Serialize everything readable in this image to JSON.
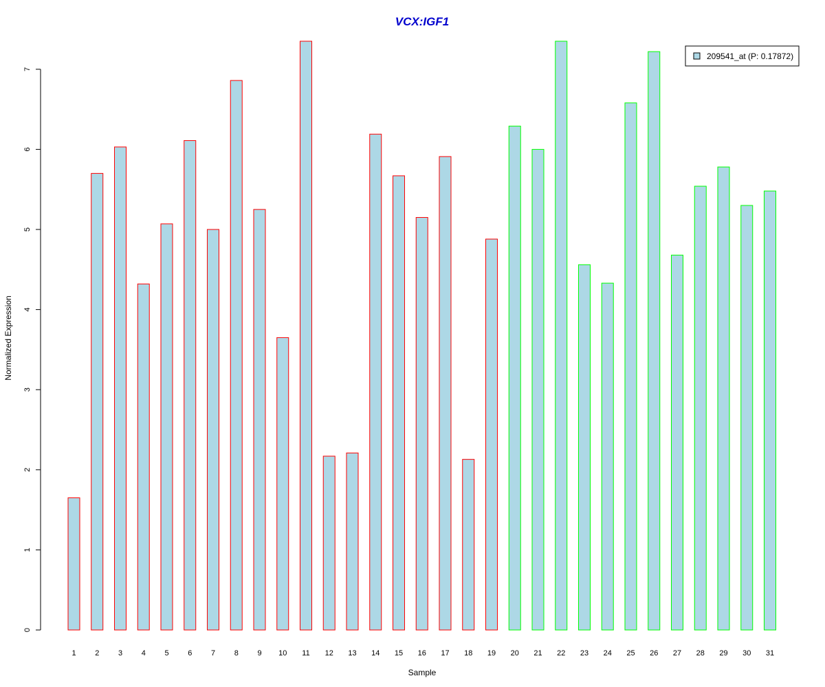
{
  "chart_data": {
    "type": "bar",
    "title": "VCX:IGF1",
    "xlabel": "Sample",
    "ylabel": "Normalized Expression",
    "ylim": [
      0,
      7.35
    ],
    "yticks": [
      "0",
      "1",
      "2",
      "3",
      "4",
      "5",
      "6",
      "7"
    ],
    "categories": [
      "1",
      "2",
      "3",
      "4",
      "5",
      "6",
      "7",
      "8",
      "9",
      "10",
      "11",
      "12",
      "13",
      "14",
      "15",
      "16",
      "17",
      "18",
      "19",
      "20",
      "21",
      "22",
      "23",
      "24",
      "25",
      "26",
      "27",
      "28",
      "29",
      "30",
      "31"
    ],
    "values": [
      1.65,
      5.7,
      6.03,
      4.32,
      5.07,
      6.11,
      5.0,
      6.86,
      5.25,
      3.65,
      7.35,
      2.17,
      2.21,
      6.19,
      5.67,
      5.15,
      5.91,
      2.13,
      4.88,
      6.29,
      6.0,
      7.35,
      4.56,
      4.33,
      6.58,
      7.22,
      4.68,
      5.54,
      5.78,
      5.3,
      5.48
    ],
    "groups": [
      "red",
      "red",
      "red",
      "red",
      "red",
      "red",
      "red",
      "red",
      "red",
      "red",
      "red",
      "red",
      "red",
      "red",
      "red",
      "red",
      "red",
      "red",
      "red",
      "green",
      "green",
      "green",
      "green",
      "green",
      "green",
      "green",
      "green",
      "green",
      "green",
      "green",
      "green"
    ],
    "series": [
      {
        "name": "209541_at (P: 0.17872)"
      }
    ],
    "legend_position": "top-right",
    "grid": false,
    "colors": {
      "bar_fill": "#add8e6",
      "border_red": "#ff0000",
      "border_green": "#00ff00",
      "title": "#0000cd",
      "axis": "#000000"
    }
  }
}
